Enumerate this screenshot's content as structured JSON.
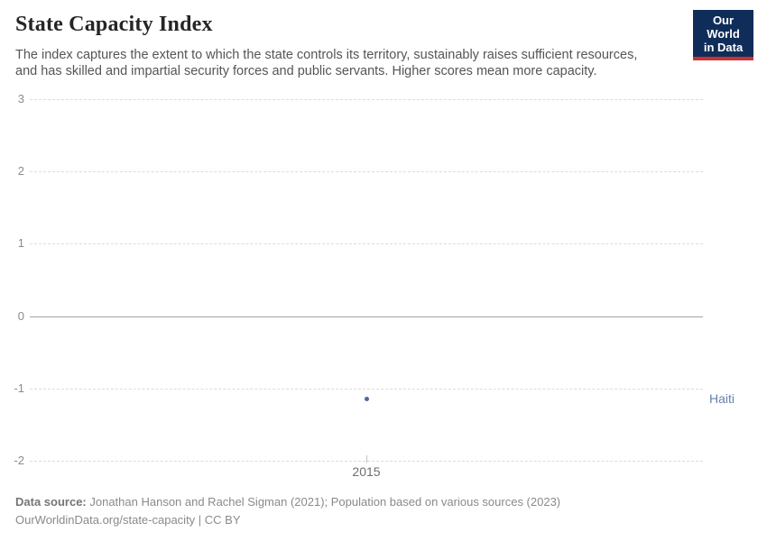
{
  "header": {
    "title": "State Capacity Index",
    "subtitle_line1": "The index captures the extent to which the state controls its territory, sustainably raises sufficient resources,",
    "subtitle_line2": "and has skilled and impartial security forces and public servants. Higher scores mean more capacity."
  },
  "logo": {
    "line1": "Our World",
    "line2": "in Data",
    "bg_color": "#102D59",
    "bar_color": "#CC3232"
  },
  "chart_data": {
    "type": "scatter",
    "title": "State Capacity Index",
    "xlabel": "",
    "ylabel": "",
    "ylim": [
      -2,
      3
    ],
    "xlim": [
      2014.5,
      2015.5
    ],
    "yticks": [
      3,
      2,
      1,
      0,
      -1,
      -2
    ],
    "xticks": [
      2015
    ],
    "grid": "horizontal dashed gridlines, solid line at zero",
    "legend_position": "right of last point",
    "series": [
      {
        "name": "Haiti",
        "color": "#4C6A9C",
        "points": [
          {
            "x": 2015,
            "y": -1.15
          }
        ]
      }
    ]
  },
  "colors": {
    "grid_dashed": "#dcdcdc",
    "zero_line": "#a4a4a4",
    "tick_text": "#8c8c8c",
    "accent_blue": "#4C6A9C"
  },
  "footer": {
    "source_label": "Data source:",
    "source_text": " Jonathan Hanson and Rachel Sigman (2021); Population based on various sources (2023)",
    "license_text": "OurWorldinData.org/state-capacity | CC BY"
  }
}
